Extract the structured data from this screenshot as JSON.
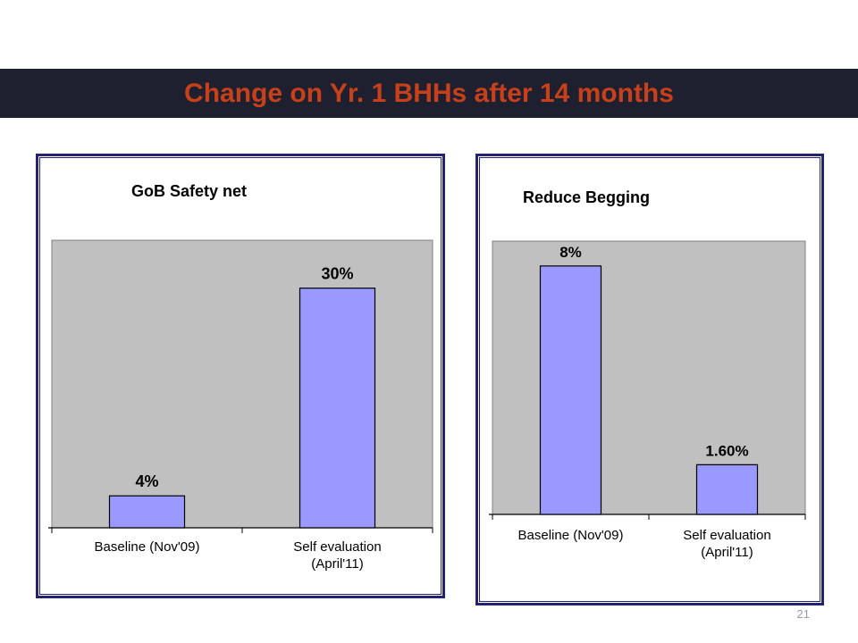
{
  "slide": {
    "title": "Change on Yr. 1 BHHs after 14 months",
    "page_number": "21"
  },
  "colors": {
    "title_bar": "#1e2030",
    "title_text": "#c8401a",
    "plot_area": "#c0c0c0",
    "bar_fill": "#9999ff",
    "panel_border": "#24246e"
  },
  "chart_data": [
    {
      "type": "bar",
      "title": "GoB Safety net",
      "categories": [
        [
          "Baseline  (Nov'09)"
        ],
        [
          "Self evaluation",
          "(April'11)"
        ]
      ],
      "values": [
        4,
        30
      ],
      "data_labels": [
        "4%",
        "30%"
      ],
      "unit": "%",
      "ylim": [
        0,
        36
      ],
      "grid": false,
      "legend": "none"
    },
    {
      "type": "bar",
      "title": "Reduce Begging",
      "categories": [
        [
          "Baseline  (Nov'09)"
        ],
        [
          "Self evaluation",
          "(April'11)"
        ]
      ],
      "values": [
        8,
        1.6
      ],
      "data_labels": [
        "8%",
        "1.60%"
      ],
      "unit": "%",
      "ylim": [
        0,
        8.8
      ],
      "grid": false,
      "legend": "none"
    }
  ]
}
